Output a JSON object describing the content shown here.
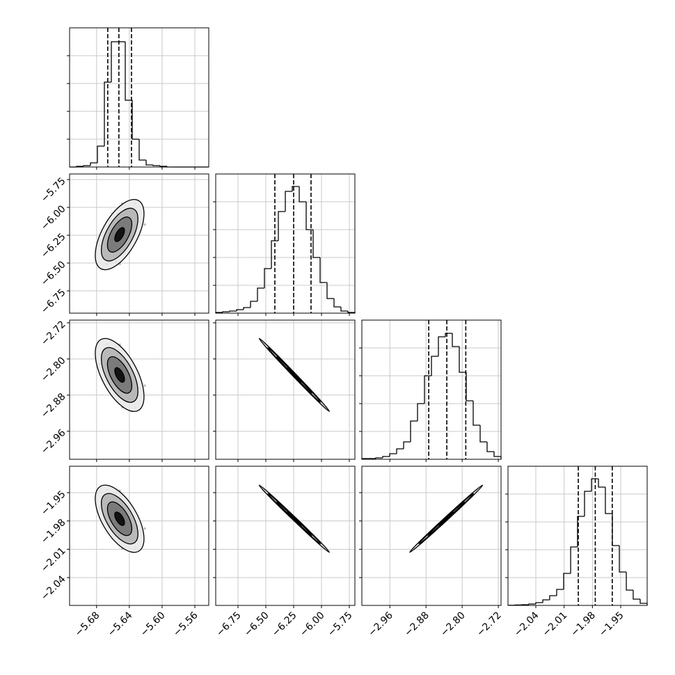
{
  "chart_data": {
    "type": "corner",
    "color": "#000000",
    "point_color": "#777777",
    "grid": true,
    "hist_ylim": [
      0,
      1000
    ],
    "hist_yticks": [
      200,
      400,
      600,
      800
    ],
    "params": [
      {
        "lim": [
          -5.713,
          -5.543
        ],
        "ticks": [
          {
            "value": -5.68,
            "label": "−5.68"
          },
          {
            "value": -5.64,
            "label": "−5.64"
          },
          {
            "value": -5.6,
            "label": "−5.60"
          },
          {
            "value": -5.56,
            "label": "−5.56"
          }
        ],
        "bins": [
          -5.713,
          -5.7045,
          -5.696,
          -5.6875,
          -5.679,
          -5.6705,
          -5.662,
          -5.6535,
          -5.645,
          -5.6365,
          -5.628,
          -5.6195,
          -5.611,
          -5.6025,
          -5.594,
          -5.5855,
          -5.577,
          -5.5685,
          -5.56,
          -5.5515,
          -5.543
        ],
        "counts": [
          0,
          5,
          10,
          30,
          150,
          610,
          900,
          900,
          480,
          200,
          50,
          15,
          10,
          5,
          0,
          0,
          0,
          0,
          0,
          0
        ],
        "quantiles": [
          -5.6664,
          -5.6528,
          -5.6374
        ],
        "samples": [
          -5.6501,
          -5.6603,
          -5.637,
          -5.6719,
          -5.653,
          -5.6429,
          -5.6646,
          -5.6269,
          -5.6559,
          -5.6472,
          -5.6762,
          -5.64,
          -5.6545,
          -5.6327,
          -5.6617,
          -5.6487,
          -5.6675,
          -5.6443,
          -5.6574,
          -5.6211,
          -5.6516,
          -5.6632,
          -5.6356,
          -5.6806
        ]
      },
      {
        "lim": [
          -6.95,
          -5.7
        ],
        "ticks": [
          {
            "value": -6.75,
            "label": "−6.75"
          },
          {
            "value": -6.5,
            "label": "−6.50"
          },
          {
            "value": -6.25,
            "label": "−6.25"
          },
          {
            "value": -6.0,
            "label": "−6.00"
          },
          {
            "value": -5.75,
            "label": "−5.75"
          }
        ],
        "bins": [
          -6.95,
          -6.8875,
          -6.825,
          -6.7625,
          -6.7,
          -6.6375,
          -6.575,
          -6.5125,
          -6.45,
          -6.3875,
          -6.325,
          -6.2625,
          -6.2,
          -6.1375,
          -6.075,
          -6.0125,
          -5.95,
          -5.8875,
          -5.825,
          -5.7625,
          -5.7
        ],
        "counts": [
          5,
          10,
          15,
          25,
          40,
          85,
          180,
          320,
          520,
          730,
          875,
          910,
          800,
          600,
          400,
          220,
          105,
          45,
          15,
          5
        ],
        "quantiles": [
          -6.419,
          -6.25,
          -6.094
        ],
        "samples": [
          -6.269,
          -6.196,
          -6.093,
          -6.452,
          -6.058,
          -6.324,
          -6.301,
          -6.128,
          -6.487,
          -6.096,
          -6.34,
          -6.164,
          -6.362,
          -5.962,
          -6.333,
          -5.965,
          -6.512,
          -6.116,
          -6.266,
          -6.154,
          -6.509,
          -6.189,
          -6.199,
          -6.394
        ]
      },
      {
        "lim": [
          -3.022,
          -2.714
        ],
        "ticks": [
          {
            "value": -2.96,
            "label": "−2.96"
          },
          {
            "value": -2.88,
            "label": "−2.88"
          },
          {
            "value": -2.8,
            "label": "−2.80"
          },
          {
            "value": -2.72,
            "label": "−2.72"
          }
        ],
        "bins": [
          -3.022,
          -3.0066,
          -2.9912,
          -2.9758,
          -2.9604,
          -2.945,
          -2.9296,
          -2.9142,
          -2.8988,
          -2.8834,
          -2.868,
          -2.8526,
          -2.8372,
          -2.8218,
          -2.8064,
          -2.791,
          -2.7756,
          -2.7602,
          -2.7448,
          -2.7294,
          -2.714
        ],
        "counts": [
          5,
          5,
          10,
          20,
          40,
          75,
          125,
          275,
          400,
          600,
          740,
          880,
          905,
          810,
          625,
          420,
          245,
          125,
          55,
          20
        ],
        "quantiles": [
          -2.874,
          -2.834,
          -2.792
        ],
        "samples": [
          -2.829,
          -2.848,
          -2.874,
          -2.782,
          -2.883,
          -2.815,
          -2.821,
          -2.865,
          -2.773,
          -2.873,
          -2.811,
          -2.856,
          -2.805,
          -2.908,
          -2.813,
          -2.907,
          -2.767,
          -2.868,
          -2.83,
          -2.859,
          -2.768,
          -2.85,
          -2.847,
          -2.797
        ]
      },
      {
        "lim": [
          -2.0695,
          -1.922
        ],
        "ticks": [
          {
            "value": -2.04,
            "label": "−2.04"
          },
          {
            "value": -2.01,
            "label": "−2.01"
          },
          {
            "value": -1.98,
            "label": "−1.98"
          },
          {
            "value": -1.95,
            "label": "−1.95"
          }
        ],
        "bins": [
          -2.0695,
          -2.0621,
          -2.0548,
          -2.0474,
          -2.04,
          -2.0326,
          -2.0253,
          -2.0179,
          -2.0105,
          -2.0031,
          -1.9958,
          -1.9884,
          -1.981,
          -1.9736,
          -1.9663,
          -1.9589,
          -1.9515,
          -1.9441,
          -1.9368,
          -1.9294,
          -1.922
        ],
        "counts": [
          1,
          3,
          5,
          10,
          20,
          40,
          70,
          115,
          230,
          420,
          640,
          820,
          910,
          850,
          660,
          430,
          240,
          110,
          45,
          15
        ],
        "quantiles": [
          -1.995,
          -1.977,
          -1.959
        ],
        "samples": [
          -1.975,
          -1.983,
          -1.995,
          -1.954,
          -1.999,
          -1.969,
          -1.971,
          -1.991,
          -1.95,
          -1.994,
          -1.967,
          -1.987,
          -1.964,
          -2.009,
          -1.968,
          -2.009,
          -1.947,
          -1.992,
          -1.975,
          -1.988,
          -1.948,
          -1.984,
          -1.983,
          -1.961
        ]
      }
    ]
  }
}
